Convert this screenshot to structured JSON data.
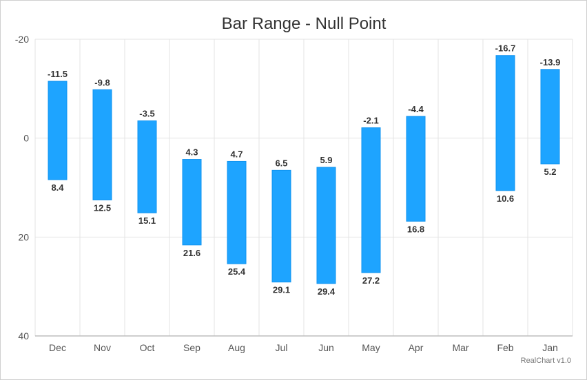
{
  "chart_data": {
    "type": "bar",
    "subtype": "range",
    "title": "Bar Range - Null Point",
    "xlabel": "",
    "ylabel": "",
    "y_reversed": true,
    "ylim": [
      -20,
      40
    ],
    "yticks": [
      -20,
      0,
      20,
      40
    ],
    "grid": true,
    "categories": [
      "Dec",
      "Nov",
      "Oct",
      "Sep",
      "Aug",
      "Jul",
      "Jun",
      "May",
      "Apr",
      "Mar",
      "Feb",
      "Jan"
    ],
    "series": [
      {
        "low": [
          -11.5,
          -9.8,
          -3.5,
          4.3,
          4.7,
          6.5,
          5.9,
          -2.1,
          -4.4,
          null,
          -16.7,
          -13.9
        ],
        "high": [
          8.4,
          12.5,
          15.1,
          21.6,
          25.4,
          29.1,
          29.4,
          27.2,
          16.8,
          null,
          10.6,
          5.2
        ],
        "color": "#1ea4ff"
      }
    ],
    "credit": "RealChart v1.0"
  }
}
